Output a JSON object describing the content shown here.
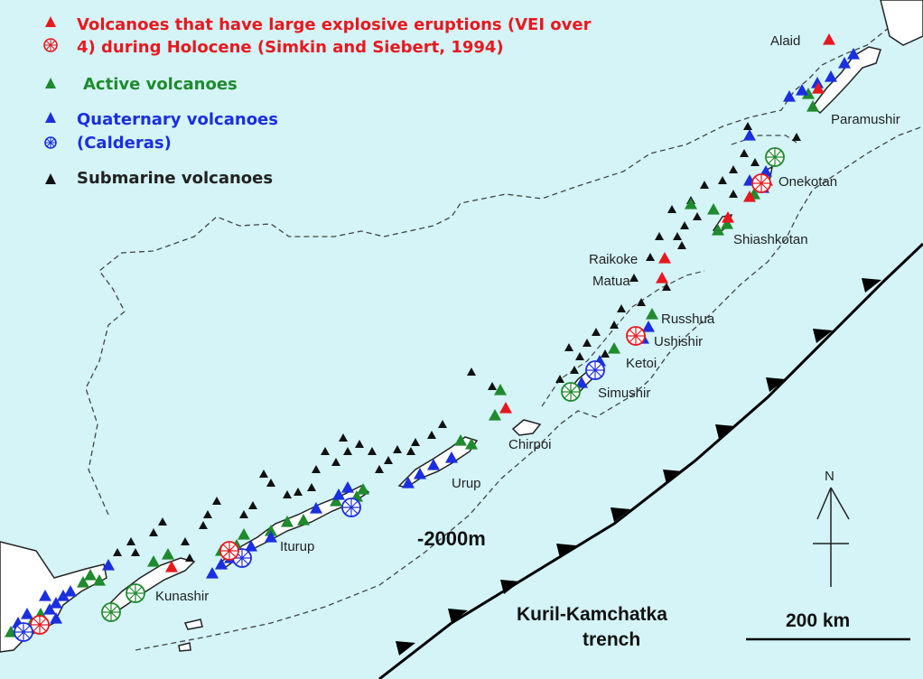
{
  "colors": {
    "sea": "#d4f4f7",
    "land": "#ffffff",
    "explosive": "#e8181f",
    "active": "#1f8a2e",
    "quaternary": "#1a2fe0",
    "submarine": "#111111"
  },
  "legend": {
    "explosive_line1": "Volcanoes that have large explosive eruptions (VEI over",
    "explosive_line2": "4) during Holocene (Simkin and Siebert, 1994)",
    "active": "Active volcanoes",
    "quaternary": "Quaternary volcanoes",
    "calderas": "(Calderas)",
    "submarine": "Submarine volcanoes"
  },
  "islands": {
    "alaid": "Alaid",
    "paramushir": "Paramushir",
    "onekotan": "Onekotan",
    "shiashkotan": "Shiashkotan",
    "raikoke": "Raikoke",
    "matua": "Matua",
    "russhua": "Russhua",
    "ushishir": "Ushishir",
    "ketoi": "Ketoi",
    "simushir": "Simushir",
    "chirpoi": "Chirpoi",
    "urup": "Urup",
    "iturup": "Iturup",
    "kunashir": "Kunashir"
  },
  "contour_label": "-2000m",
  "trench": {
    "line1": "Kuril-Kamchatka",
    "line2": "trench"
  },
  "north_label": "N",
  "scale_label": "200 km",
  "icons": {
    "triangle": "triangle-icon",
    "caldera": "caldera-icon",
    "north_arrow": "north-arrow-icon"
  }
}
